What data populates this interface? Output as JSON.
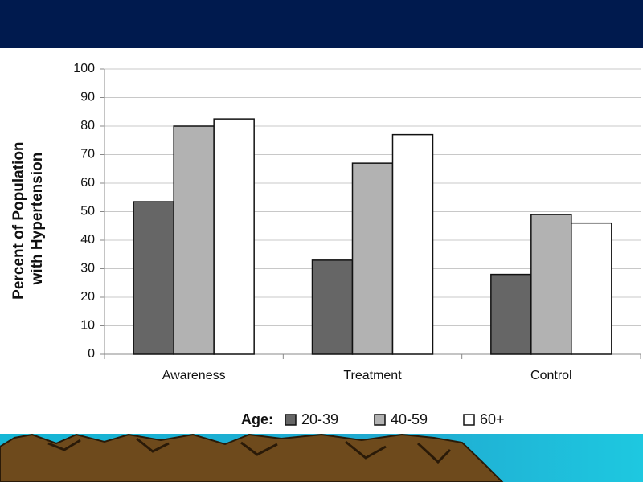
{
  "chart_data": {
    "type": "bar",
    "ylabel": [
      "Percent of Population",
      "with Hypertension"
    ],
    "categories": [
      "Awareness",
      "Treatment",
      "Control"
    ],
    "legend_title": "Age:",
    "series": [
      {
        "name": "20-39",
        "color": "#666666",
        "values": [
          53.5,
          33,
          28
        ]
      },
      {
        "name": "40-59",
        "color": "#b2b2b2",
        "values": [
          80,
          67,
          49
        ]
      },
      {
        "name": "60+",
        "color": "#ffffff",
        "values": [
          82.5,
          77,
          46
        ]
      }
    ],
    "ylim": [
      0,
      100
    ],
    "yticks": [
      0,
      10,
      20,
      30,
      40,
      50,
      60,
      70,
      80,
      90,
      100
    ],
    "grid": true
  }
}
